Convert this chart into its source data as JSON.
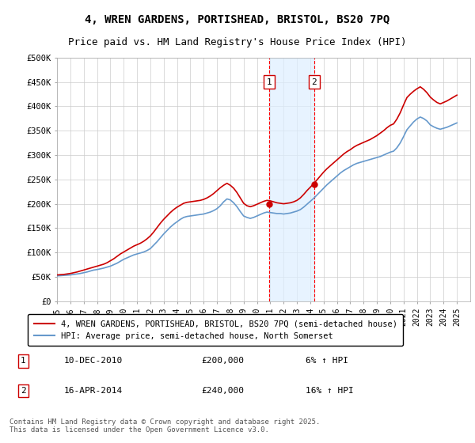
{
  "title1": "4, WREN GARDENS, PORTISHEAD, BRISTOL, BS20 7PQ",
  "title2": "Price paid vs. HM Land Registry's House Price Index (HPI)",
  "ylabel_ticks": [
    "£0",
    "£50K",
    "£100K",
    "£150K",
    "£200K",
    "£250K",
    "£300K",
    "£350K",
    "£400K",
    "£450K",
    "£500K"
  ],
  "ytick_values": [
    0,
    50000,
    100000,
    150000,
    200000,
    250000,
    300000,
    350000,
    400000,
    450000,
    500000
  ],
  "xmin": 1995,
  "xmax": 2026,
  "ymin": 0,
  "ymax": 500000,
  "red_color": "#cc0000",
  "blue_color": "#6699cc",
  "vline1_x": 2010.92,
  "vline2_x": 2014.29,
  "shade_color": "#ddeeff",
  "purchase1": {
    "date": "10-DEC-2010",
    "price": 200000,
    "label": "1",
    "x": 2010.92,
    "hpi_pct": "6% ↑ HPI"
  },
  "purchase2": {
    "date": "16-APR-2014",
    "price": 240000,
    "label": "2",
    "x": 2014.29,
    "hpi_pct": "16% ↑ HPI"
  },
  "legend_red": "4, WREN GARDENS, PORTISHEAD, BRISTOL, BS20 7PQ (semi-detached house)",
  "legend_blue": "HPI: Average price, semi-detached house, North Somerset",
  "footer": "Contains HM Land Registry data © Crown copyright and database right 2025.\nThis data is licensed under the Open Government Licence v3.0.",
  "background_color": "#ffffff",
  "grid_color": "#cccccc",
  "hpi_data_x": [
    1995,
    1995.25,
    1995.5,
    1995.75,
    1996,
    1996.25,
    1996.5,
    1996.75,
    1997,
    1997.25,
    1997.5,
    1997.75,
    1998,
    1998.25,
    1998.5,
    1998.75,
    1999,
    1999.25,
    1999.5,
    1999.75,
    2000,
    2000.25,
    2000.5,
    2000.75,
    2001,
    2001.25,
    2001.5,
    2001.75,
    2002,
    2002.25,
    2002.5,
    2002.75,
    2003,
    2003.25,
    2003.5,
    2003.75,
    2004,
    2004.25,
    2004.5,
    2004.75,
    2005,
    2005.25,
    2005.5,
    2005.75,
    2006,
    2006.25,
    2006.5,
    2006.75,
    2007,
    2007.25,
    2007.5,
    2007.75,
    2008,
    2008.25,
    2008.5,
    2008.75,
    2009,
    2009.25,
    2009.5,
    2009.75,
    2010,
    2010.25,
    2010.5,
    2010.75,
    2011,
    2011.25,
    2011.5,
    2011.75,
    2012,
    2012.25,
    2012.5,
    2012.75,
    2013,
    2013.25,
    2013.5,
    2013.75,
    2014,
    2014.25,
    2014.5,
    2014.75,
    2015,
    2015.25,
    2015.5,
    2015.75,
    2016,
    2016.25,
    2016.5,
    2016.75,
    2017,
    2017.25,
    2017.5,
    2017.75,
    2018,
    2018.25,
    2018.5,
    2018.75,
    2019,
    2019.25,
    2019.5,
    2019.75,
    2020,
    2020.25,
    2020.5,
    2020.75,
    2021,
    2021.25,
    2021.5,
    2021.75,
    2022,
    2022.25,
    2022.5,
    2022.75,
    2023,
    2023.25,
    2023.5,
    2023.75,
    2024,
    2024.25,
    2024.5,
    2024.75,
    2025
  ],
  "hpi_data_y": [
    52000,
    52500,
    53000,
    53500,
    54000,
    55000,
    56000,
    57000,
    58500,
    60000,
    62000,
    64000,
    65000,
    66500,
    68000,
    70000,
    72000,
    75000,
    78000,
    82000,
    86000,
    89000,
    92000,
    95000,
    97000,
    99000,
    101000,
    104000,
    108000,
    115000,
    122000,
    130000,
    138000,
    145000,
    152000,
    158000,
    163000,
    168000,
    172000,
    174000,
    175000,
    176000,
    177000,
    178000,
    179000,
    181000,
    183000,
    186000,
    190000,
    196000,
    204000,
    210000,
    208000,
    202000,
    194000,
    184000,
    175000,
    172000,
    170000,
    172000,
    175000,
    178000,
    181000,
    183000,
    182000,
    181000,
    180000,
    180000,
    179000,
    180000,
    181000,
    183000,
    185000,
    188000,
    193000,
    199000,
    205000,
    211000,
    218000,
    225000,
    232000,
    239000,
    245000,
    251000,
    257000,
    263000,
    268000,
    272000,
    276000,
    280000,
    283000,
    285000,
    287000,
    289000,
    291000,
    293000,
    295000,
    297000,
    300000,
    303000,
    306000,
    308000,
    315000,
    325000,
    338000,
    352000,
    360000,
    368000,
    374000,
    378000,
    375000,
    370000,
    362000,
    358000,
    355000,
    353000,
    355000,
    357000,
    360000,
    363000,
    366000
  ],
  "price_data_x": [
    1995,
    1995.25,
    1995.5,
    1995.75,
    1996,
    1996.25,
    1996.5,
    1996.75,
    1997,
    1997.25,
    1997.5,
    1997.75,
    1998,
    1998.25,
    1998.5,
    1998.75,
    1999,
    1999.25,
    1999.5,
    1999.75,
    2000,
    2000.25,
    2000.5,
    2000.75,
    2001,
    2001.25,
    2001.5,
    2001.75,
    2002,
    2002.25,
    2002.5,
    2002.75,
    2003,
    2003.25,
    2003.5,
    2003.75,
    2004,
    2004.25,
    2004.5,
    2004.75,
    2005,
    2005.25,
    2005.5,
    2005.75,
    2006,
    2006.25,
    2006.5,
    2006.75,
    2007,
    2007.25,
    2007.5,
    2007.75,
    2008,
    2008.25,
    2008.5,
    2008.75,
    2009,
    2009.25,
    2009.5,
    2009.75,
    2010,
    2010.25,
    2010.5,
    2010.75,
    2011,
    2011.25,
    2011.5,
    2011.75,
    2012,
    2012.25,
    2012.5,
    2012.75,
    2013,
    2013.25,
    2013.5,
    2013.75,
    2014,
    2014.25,
    2014.5,
    2014.75,
    2015,
    2015.25,
    2015.5,
    2015.75,
    2016,
    2016.25,
    2016.5,
    2016.75,
    2017,
    2017.25,
    2017.5,
    2017.75,
    2018,
    2018.25,
    2018.5,
    2018.75,
    2019,
    2019.25,
    2019.5,
    2019.75,
    2020,
    2020.25,
    2020.5,
    2020.75,
    2021,
    2021.25,
    2021.5,
    2021.75,
    2022,
    2022.25,
    2022.5,
    2022.75,
    2023,
    2023.25,
    2023.5,
    2023.75,
    2024,
    2024.25,
    2024.5,
    2024.75,
    2025
  ],
  "price_data_y": [
    54000,
    54500,
    55000,
    56000,
    57000,
    58500,
    60000,
    62000,
    64000,
    66000,
    68000,
    70000,
    72000,
    74000,
    76000,
    79000,
    83000,
    87000,
    92000,
    97000,
    101000,
    105000,
    109000,
    113000,
    116000,
    119000,
    123000,
    128000,
    134000,
    142000,
    151000,
    160000,
    168000,
    175000,
    182000,
    188000,
    193000,
    197000,
    201000,
    203000,
    204000,
    205000,
    206000,
    207000,
    209000,
    212000,
    216000,
    221000,
    227000,
    233000,
    238000,
    242000,
    238000,
    232000,
    223000,
    212000,
    201000,
    196000,
    194000,
    196000,
    199000,
    202000,
    205000,
    207000,
    206000,
    204000,
    202000,
    201000,
    200000,
    201000,
    202000,
    204000,
    207000,
    212000,
    219000,
    227000,
    234000,
    241000,
    249000,
    257000,
    265000,
    272000,
    278000,
    284000,
    290000,
    296000,
    302000,
    307000,
    311000,
    316000,
    320000,
    323000,
    326000,
    329000,
    332000,
    336000,
    340000,
    345000,
    350000,
    356000,
    361000,
    364000,
    374000,
    387000,
    403000,
    418000,
    425000,
    431000,
    436000,
    440000,
    435000,
    428000,
    419000,
    413000,
    408000,
    405000,
    408000,
    411000,
    415000,
    419000,
    423000
  ]
}
